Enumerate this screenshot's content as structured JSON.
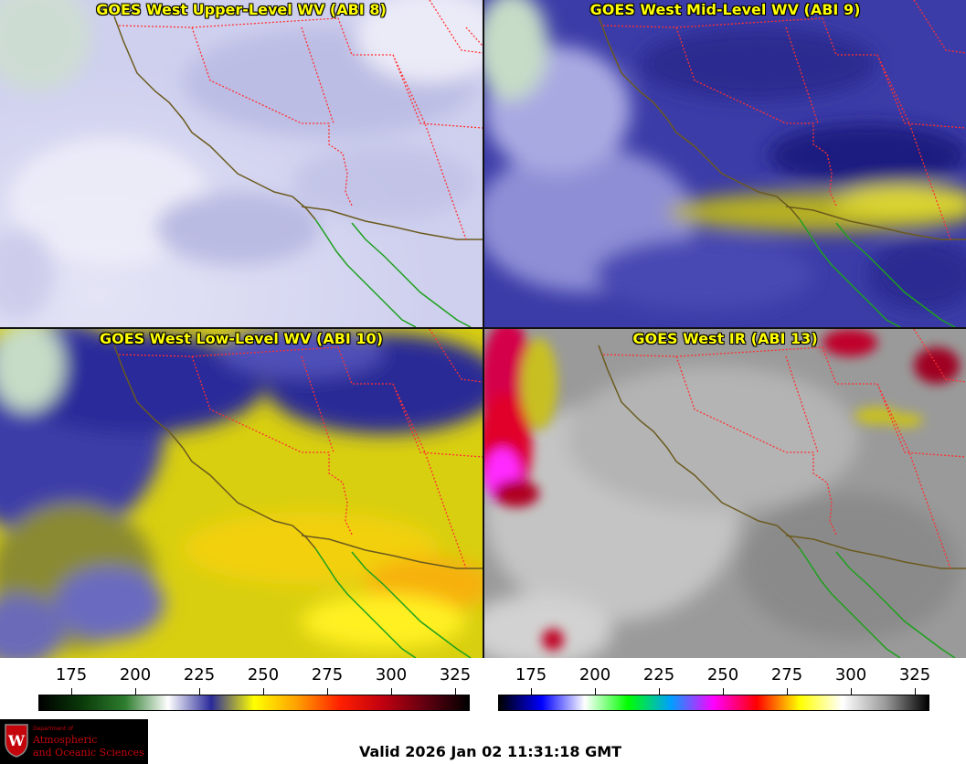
{
  "panels": [
    {
      "id": "upper",
      "title": "GOES West Upper-Level WV (ABI 8)"
    },
    {
      "id": "mid",
      "title": "GOES West Mid-Level WV (ABI 9)"
    },
    {
      "id": "low",
      "title": "GOES West Low-Level WV (ABI 10)"
    },
    {
      "id": "ir",
      "title": "GOES West IR (ABI 13)"
    }
  ],
  "colorbars": {
    "wv": {
      "ticks": [
        "175",
        "200",
        "225",
        "250",
        "275",
        "300",
        "325"
      ],
      "gradient": [
        "#000000",
        "#0a3a0a",
        "#2e7d2e",
        "#ffffff",
        "#2a2a9a",
        "#ffff00",
        "#ffa000",
        "#ff2000",
        "#c00010",
        "#600010",
        "#000000"
      ]
    },
    "ir": {
      "ticks": [
        "175",
        "200",
        "225",
        "250",
        "275",
        "300",
        "325"
      ],
      "gradient": [
        "#000000",
        "#0000ff",
        "#ffffff",
        "#00ff00",
        "#00a0ff",
        "#ff00ff",
        "#ff0000",
        "#ffff00",
        "#ffffff",
        "#9a9a9a",
        "#000000"
      ]
    }
  },
  "logo": {
    "small": "Department of",
    "line1": "Atmospheric",
    "line2": "and Oceanic Sciences"
  },
  "valid_time": "Valid 2026 Jan 02 11:31:18 GMT",
  "colors": {
    "coast": "#6b5a1e",
    "state_borders": "#ff3030",
    "mexico_coast": "#1ea01e",
    "title_text": "#ffff00"
  }
}
